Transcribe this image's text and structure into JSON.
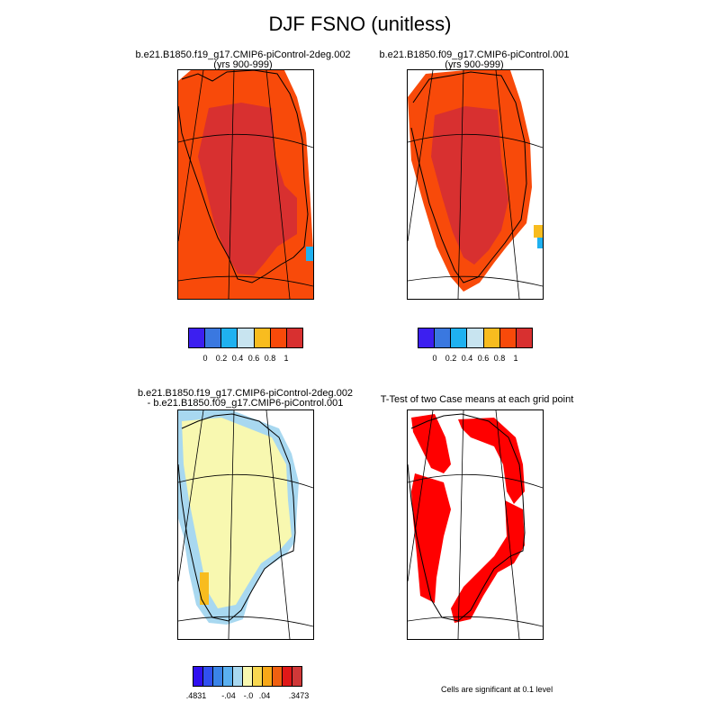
{
  "title": "DJF FSNO (unitless)",
  "panels": {
    "top_left": {
      "title_line1": "b.e21.B1850.f19_g17.CMIP6-piControl-2deg.002",
      "title_line2": "(yrs 900-999)"
    },
    "top_right": {
      "title_line1": "b.e21.B1850.f09_g17.CMIP6-piControl.001",
      "title_line2": "(yrs 900-999)"
    },
    "bottom_left": {
      "title_line1": "b.e21.B1850.f19_g17.CMIP6-piControl-2deg.002",
      "title_line2": "- b.e21.B1850.f09_g17.CMIP6-piControl.001"
    },
    "bottom_right": {
      "title_line1": "T-Test of two Case means at each grid point"
    }
  },
  "colorbar_case": {
    "colors": [
      "#3c1ff0",
      "#3a78e0",
      "#1fb1f0",
      "#c8e4f0",
      "#f8bc1f",
      "#f84a0a",
      "#d83030"
    ],
    "labels": [
      "0",
      "0.2",
      "0.4",
      "0.6",
      "0.8",
      "1"
    ]
  },
  "colorbar_diff": {
    "colors": [
      "#3010f0",
      "#3050f0",
      "#3a84e8",
      "#5ab0f0",
      "#a8d8f0",
      "#f8f8b0",
      "#f8d850",
      "#f8a818",
      "#f06010",
      "#e01818",
      "#d03838"
    ],
    "labels": [
      ".4831",
      "-.04",
      "-.0",
      ".04",
      ".3473"
    ]
  },
  "significance_note": "Cells are significant at 0.1 level",
  "colors": {
    "case_high": "#d83030",
    "case_edge": "#f84a0a",
    "diff_pos": "#f8f8b0",
    "diff_neg": "#a8d8f0",
    "diff_orange": "#f8bc1f",
    "signif": "#ff0000"
  }
}
